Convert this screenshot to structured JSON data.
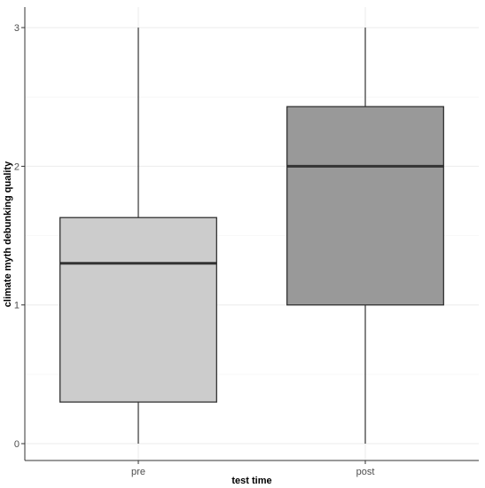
{
  "chart_data": {
    "type": "boxplot",
    "title": "",
    "xlabel": "test time",
    "ylabel": "climate myth debunking quality",
    "ylim": [
      -0.15,
      3.05
    ],
    "yticks": [
      0,
      1,
      2,
      3
    ],
    "grid": true,
    "legend": "none",
    "categories": [
      "pre",
      "post"
    ],
    "boxes": [
      {
        "category": "pre",
        "min": 0,
        "q1": 0.3,
        "median": 1.3,
        "q3": 1.63,
        "max": 3,
        "fill": "#cccccc"
      },
      {
        "category": "post",
        "min": 0,
        "q1": 1.0,
        "median": 2.0,
        "q3": 2.43,
        "max": 3,
        "fill": "#999999"
      }
    ]
  }
}
